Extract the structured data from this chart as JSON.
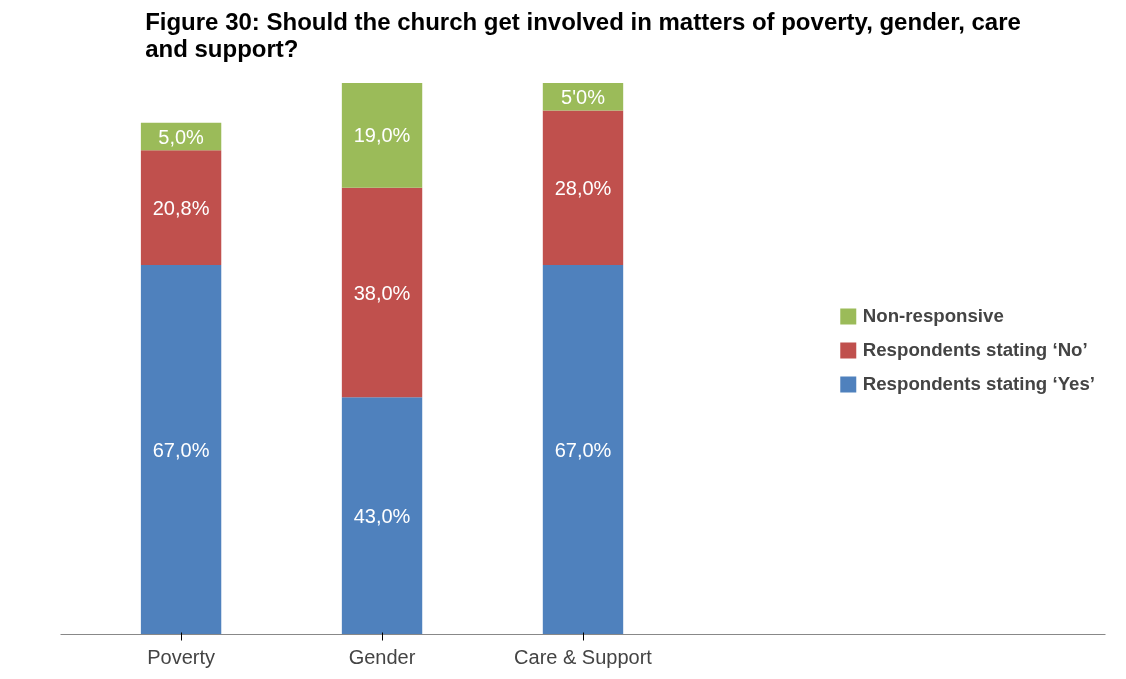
{
  "chart_data": {
    "type": "bar",
    "title": "Figure 30: Should the church get involved in matters of poverty, gender, care and support?",
    "categories": [
      "Poverty",
      "Gender",
      "Care & Support"
    ],
    "stacked": true,
    "grid": false,
    "legend": "right",
    "series": [
      {
        "name": "Respondents stating ‘Yes’",
        "color": "#4f81bd",
        "values": [
          67.0,
          43.0,
          67.0
        ],
        "value_labels": [
          "67,0%",
          "43,0%",
          "67,0%"
        ]
      },
      {
        "name": "Respondents stating ‘No’",
        "color": "#c0504d",
        "values": [
          20.8,
          38.0,
          28.0
        ],
        "value_labels": [
          "20,8%",
          "38,0%",
          "28,0%"
        ]
      },
      {
        "name": "Non-responsive",
        "color": "#9bbb59",
        "values": [
          5.0,
          19.0,
          5.0
        ],
        "value_labels": [
          "5,0%",
          "19,0%",
          "5'0%"
        ]
      }
    ]
  }
}
